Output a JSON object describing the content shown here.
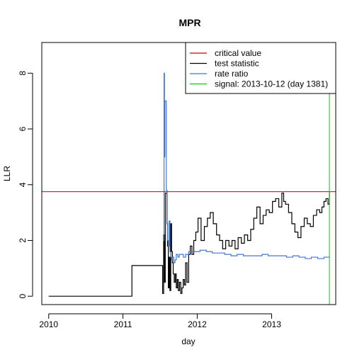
{
  "chart_data": {
    "type": "line",
    "title": "MPR",
    "xlabel": "day",
    "ylabel": "LLR",
    "x_ticks": [
      {
        "value": "2010-01-01",
        "label": "2010"
      },
      {
        "value": "2011-01-01",
        "label": "2011"
      },
      {
        "value": "2012-01-01",
        "label": "2012"
      },
      {
        "value": "2013-01-01",
        "label": "2013"
      }
    ],
    "y_ticks": [
      0,
      2,
      4,
      6,
      8
    ],
    "xlim": [
      "2009-11-28",
      "2013-11-12"
    ],
    "ylim": [
      -0.3,
      9.1
    ],
    "grid": false,
    "legend_position": "top-right",
    "series": [
      {
        "name": "critical value",
        "color": "#cc0000",
        "kind": "hline",
        "y": 3.75
      },
      {
        "name": "test statistic",
        "color": "#000000",
        "kind": "step",
        "x": [
          "2010-01-01",
          "2011-02-14",
          "2011-02-14",
          "2011-07-10",
          "2011-07-15",
          "2011-07-20",
          "2011-07-24",
          "2011-07-28",
          "2011-08-01",
          "2011-08-05",
          "2011-08-08",
          "2011-08-12",
          "2011-08-16",
          "2011-08-20",
          "2011-08-24",
          "2011-08-28",
          "2011-09-01",
          "2011-09-05",
          "2011-09-10",
          "2011-09-15",
          "2011-09-20",
          "2011-09-25",
          "2011-09-30",
          "2011-10-06",
          "2011-10-12",
          "2011-10-18",
          "2011-10-24",
          "2011-10-30",
          "2011-11-05",
          "2011-11-12",
          "2011-11-20",
          "2011-11-28",
          "2011-12-06",
          "2011-12-15",
          "2011-12-25",
          "2012-01-05",
          "2012-01-20",
          "2012-02-05",
          "2012-02-20",
          "2012-03-05",
          "2012-03-20",
          "2012-04-05",
          "2012-04-20",
          "2012-05-05",
          "2012-05-20",
          "2012-06-05",
          "2012-06-20",
          "2012-07-05",
          "2012-07-20",
          "2012-08-05",
          "2012-08-20",
          "2012-09-05",
          "2012-09-20",
          "2012-10-05",
          "2012-10-20",
          "2012-11-05",
          "2012-11-20",
          "2012-12-05",
          "2012-12-20",
          "2013-01-05",
          "2013-01-20",
          "2013-02-05",
          "2013-02-20",
          "2013-03-01",
          "2013-03-10",
          "2013-03-25",
          "2013-04-10",
          "2013-04-25",
          "2013-05-10",
          "2013-05-25",
          "2013-06-10",
          "2013-06-25",
          "2013-07-10",
          "2013-07-25",
          "2013-08-10",
          "2013-08-25",
          "2013-09-05",
          "2013-09-15",
          "2013-09-25",
          "2013-10-05",
          "2013-10-12"
        ],
        "y": [
          0,
          0,
          1.1,
          1.1,
          0.1,
          2.2,
          0.5,
          3.7,
          3.7,
          2.6,
          1.8,
          0.3,
          1.4,
          0.2,
          2.6,
          1.6,
          1.2,
          0.8,
          0.5,
          0.8,
          0.3,
          0.6,
          0.2,
          0.5,
          0.1,
          0.3,
          0.6,
          0.4,
          1.2,
          0.5,
          1.5,
          1.8,
          1.5,
          2.0,
          2.3,
          2.8,
          2.0,
          2.5,
          2.8,
          3.0,
          2.6,
          2.2,
          2.0,
          1.7,
          2.0,
          1.8,
          2.0,
          1.7,
          2.1,
          1.9,
          2.2,
          2.0,
          2.4,
          2.8,
          3.2,
          2.6,
          2.9,
          3.1,
          3.0,
          3.4,
          3.5,
          3.2,
          3.7,
          3.4,
          3.3,
          3.0,
          2.6,
          2.3,
          2.1,
          2.5,
          2.8,
          2.6,
          2.5,
          2.9,
          3.1,
          3.0,
          3.2,
          3.4,
          3.5,
          3.3,
          3.75
        ]
      },
      {
        "name": "rate ratio",
        "color": "#4477cc",
        "kind": "step",
        "x": [
          "2011-07-18",
          "2011-07-22",
          "2011-07-24",
          "2011-07-26",
          "2011-07-28",
          "2011-08-02",
          "2011-08-06",
          "2011-08-08",
          "2011-08-12",
          "2011-08-16",
          "2011-08-20",
          "2011-08-24",
          "2011-08-28",
          "2011-09-02",
          "2011-09-08",
          "2011-09-14",
          "2011-09-20",
          "2011-09-28",
          "2011-10-05",
          "2011-10-15",
          "2011-10-25",
          "2011-11-05",
          "2011-11-20",
          "2011-12-05",
          "2011-12-25",
          "2012-01-15",
          "2012-02-15",
          "2012-03-15",
          "2012-04-15",
          "2012-05-15",
          "2012-06-15",
          "2012-07-15",
          "2012-08-15",
          "2012-09-15",
          "2012-10-15",
          "2012-11-15",
          "2012-12-15",
          "2013-01-15",
          "2013-02-15",
          "2013-03-15",
          "2013-04-15",
          "2013-05-15",
          "2013-06-15",
          "2013-07-15",
          "2013-08-15",
          "2013-09-15",
          "2013-10-12"
        ],
        "y": [
          2.0,
          8.0,
          5.0,
          7.0,
          7.0,
          3.8,
          2.6,
          2.0,
          1.8,
          2.7,
          1.6,
          1.4,
          1.3,
          1.4,
          1.2,
          1.3,
          1.5,
          1.4,
          1.5,
          1.5,
          1.4,
          1.5,
          1.6,
          1.6,
          1.6,
          1.65,
          1.6,
          1.55,
          1.55,
          1.5,
          1.45,
          1.5,
          1.45,
          1.45,
          1.45,
          1.5,
          1.45,
          1.45,
          1.45,
          1.4,
          1.45,
          1.4,
          1.35,
          1.4,
          1.35,
          1.4,
          1.4
        ]
      },
      {
        "name": "signal: 2013-10-12 (day 1381)",
        "color": "#00cc00",
        "kind": "vline",
        "x": "2013-10-12"
      }
    ]
  }
}
